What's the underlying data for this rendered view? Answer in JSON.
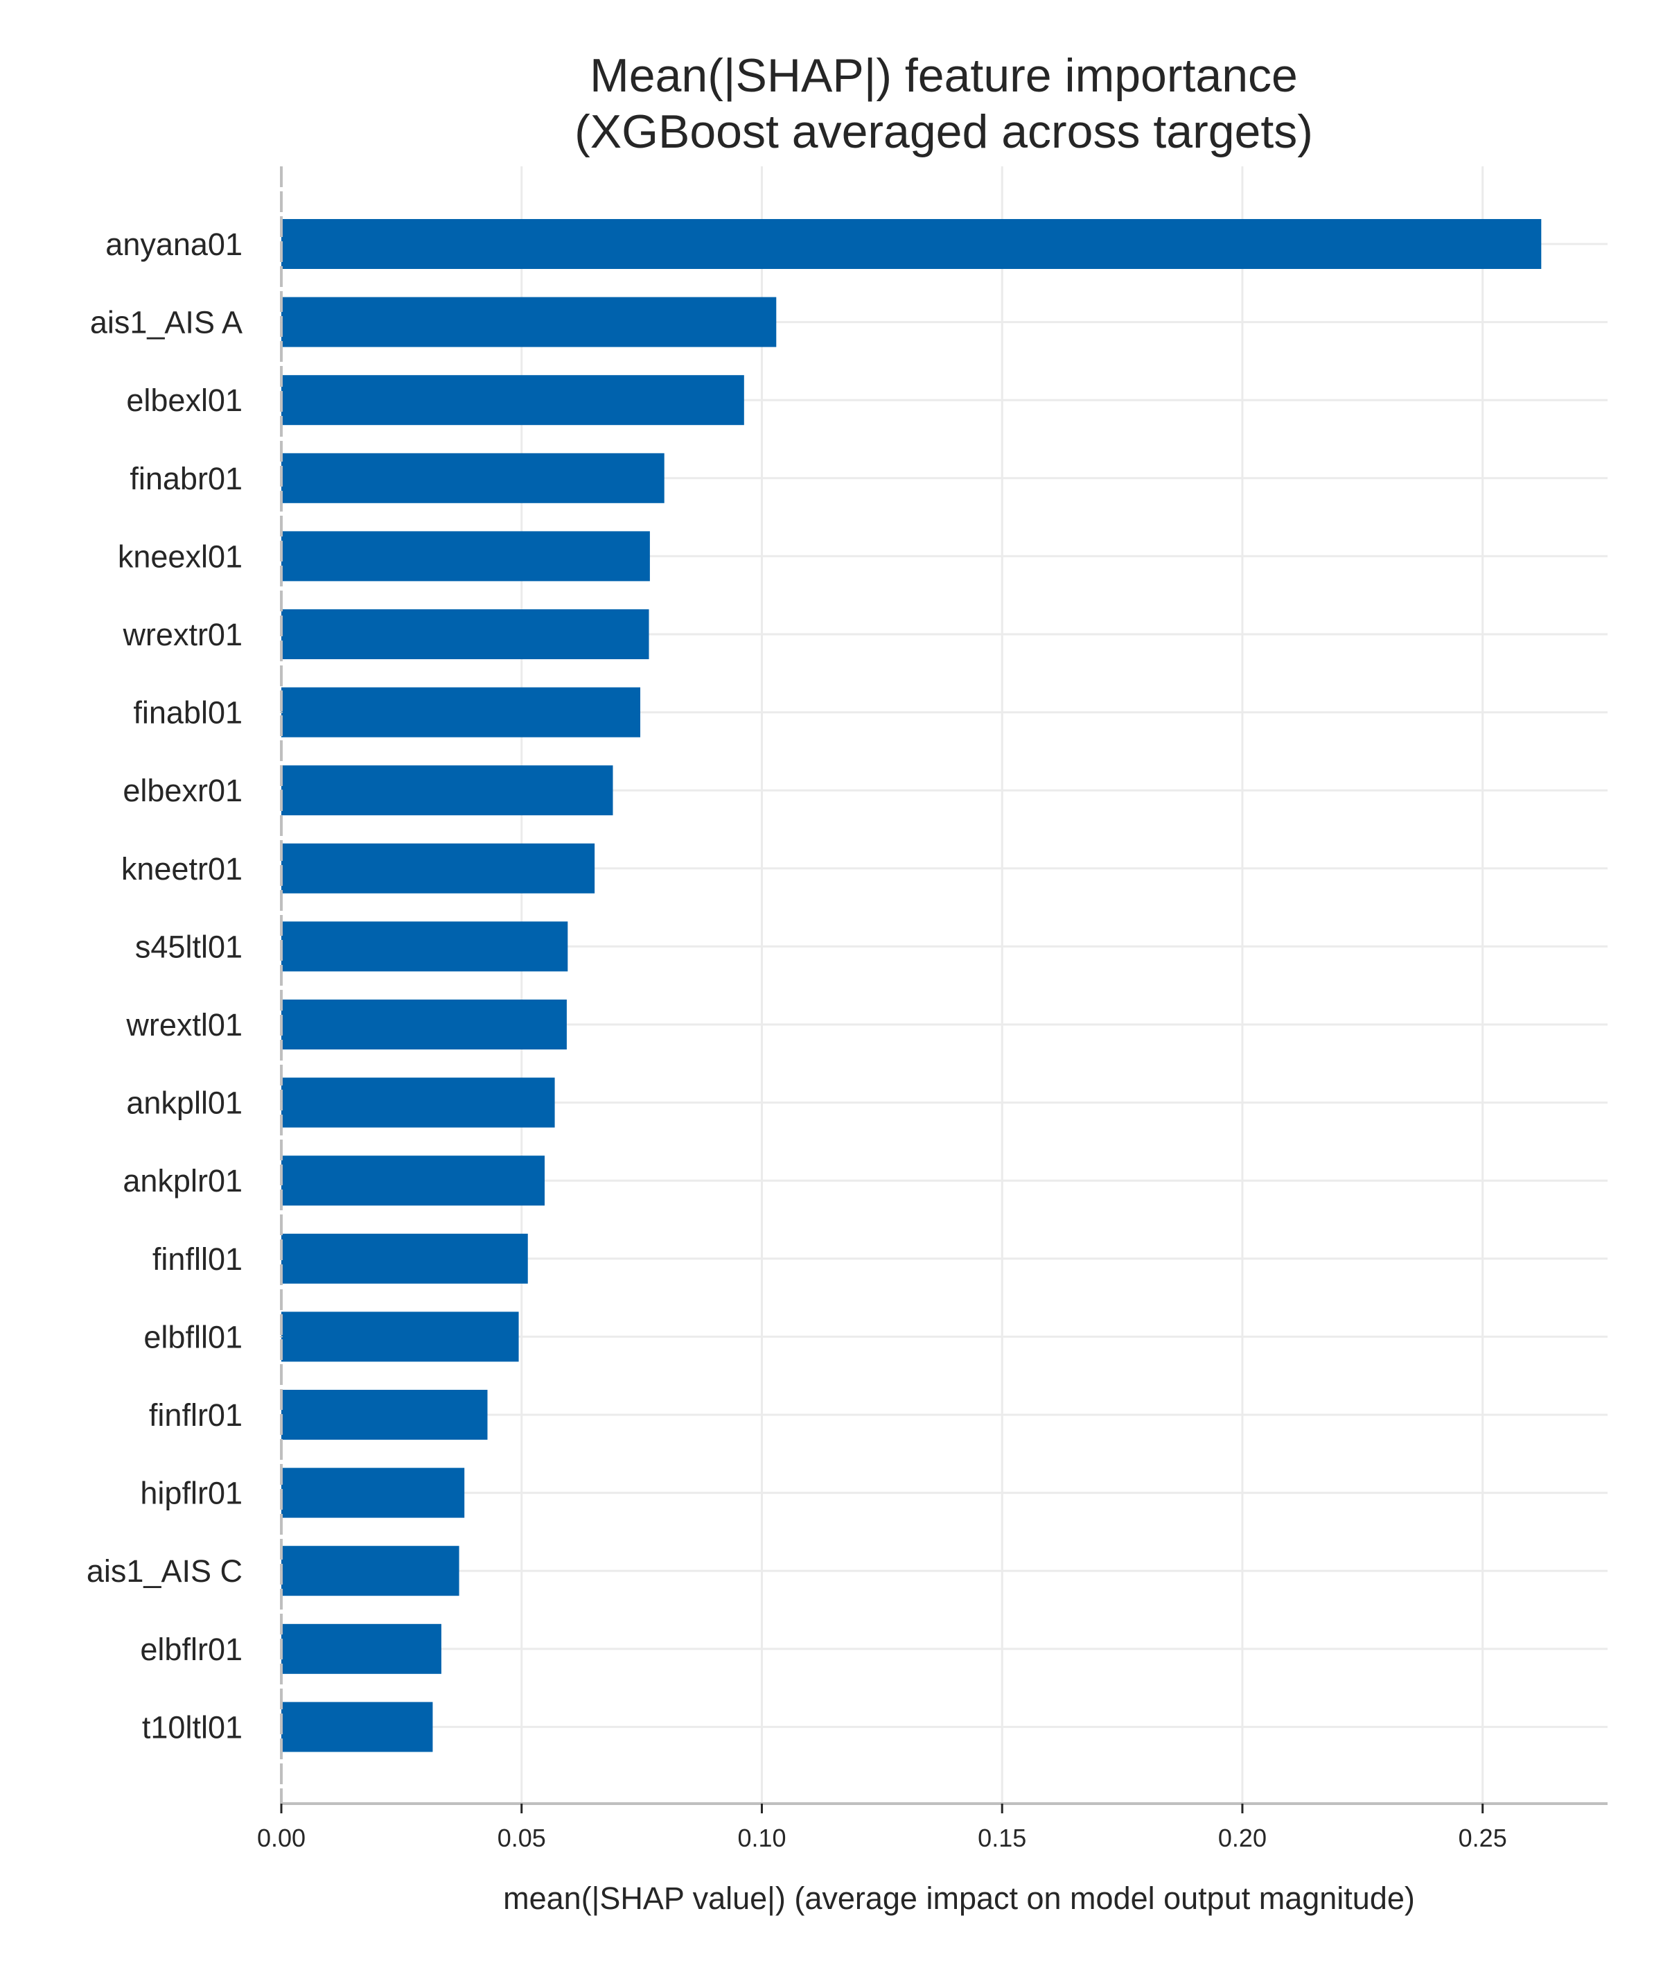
{
  "colors": {
    "bar": "#0062ad",
    "grid": "#ebebeb",
    "axis": "#bfbfbf",
    "text": "#262626"
  },
  "chart_data": {
    "type": "bar",
    "orientation": "horizontal",
    "title": [
      "Mean(|SHAP|) feature importance",
      "(XGBoost averaged across targets)"
    ],
    "xlabel": "mean(|SHAP value|) (average impact on model output magnitude)",
    "ylabel": "",
    "xlim": [
      0,
      0.276
    ],
    "xticks": [
      0.0,
      0.05,
      0.1,
      0.15,
      0.2,
      0.25
    ],
    "xtick_labels": [
      "0.00",
      "0.05",
      "0.10",
      "0.15",
      "0.20",
      "0.25"
    ],
    "grid": true,
    "categories": [
      "anyana01",
      "ais1_AIS A",
      "elbexl01",
      "finabr01",
      "kneexl01",
      "wrextr01",
      "finabl01",
      "elbexr01",
      "kneetr01",
      "s45ltl01",
      "wrextl01",
      "ankpll01",
      "ankplr01",
      "finfll01",
      "elbfll01",
      "finflr01",
      "hipflr01",
      "ais1_AIS C",
      "elbflr01",
      "t10ltl01"
    ],
    "values": [
      0.2622,
      0.103,
      0.0963,
      0.0797,
      0.0767,
      0.0765,
      0.0747,
      0.069,
      0.0652,
      0.0596,
      0.0594,
      0.0569,
      0.0548,
      0.0513,
      0.0494,
      0.0429,
      0.0381,
      0.037,
      0.0333,
      0.0315
    ]
  }
}
